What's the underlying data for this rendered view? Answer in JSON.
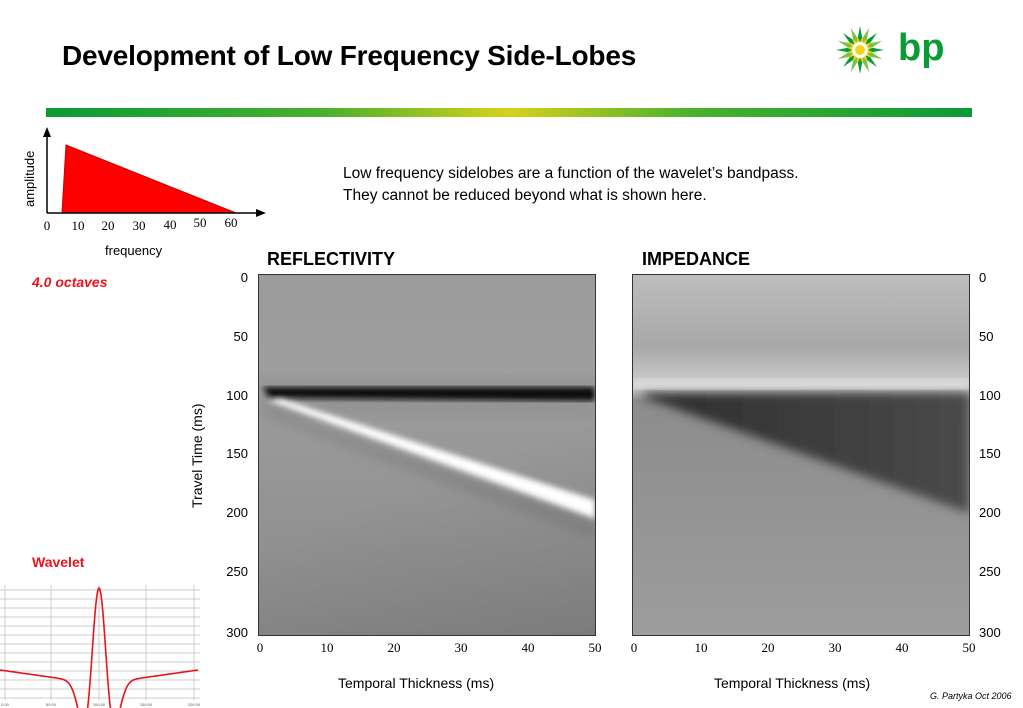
{
  "slide": {
    "title": "Development of Low Frequency Side-Lobes",
    "description_line1": "Low frequency sidelobes are a function of the wavelet’s bandpass.",
    "description_line2": "They cannot be reduced beyond what is shown here.",
    "octaves_label": "4.0 octaves",
    "wavelet_label": "Wavelet",
    "credit": "G. Partyka Oct 2006",
    "logo_text": "bp",
    "colors": {
      "accent_red": "#e8141c",
      "bp_green": "#0a9a36",
      "bp_yellow": "#f4d21b"
    }
  },
  "spectrum": {
    "ylabel": "amplitude",
    "xlabel": "frequency",
    "xticks": [
      "0",
      "10",
      "20",
      "30",
      "40",
      "50",
      "60"
    ]
  },
  "panels": {
    "reflectivity": {
      "title": "REFLECTIVITY",
      "xlabel": "Temporal Thickness (ms)"
    },
    "impedance": {
      "title": "IMPEDANCE",
      "xlabel": "Temporal Thickness (ms)"
    },
    "ylabel": "Travel Time (ms)",
    "yticks": [
      "0",
      "50",
      "100",
      "150",
      "200",
      "250",
      "300"
    ],
    "xticks": [
      "0",
      "10",
      "20",
      "30",
      "40",
      "50"
    ]
  },
  "wavelet_ticks": [
    "0.00",
    "50.00",
    "100.00",
    "150.00",
    "200.00"
  ]
}
